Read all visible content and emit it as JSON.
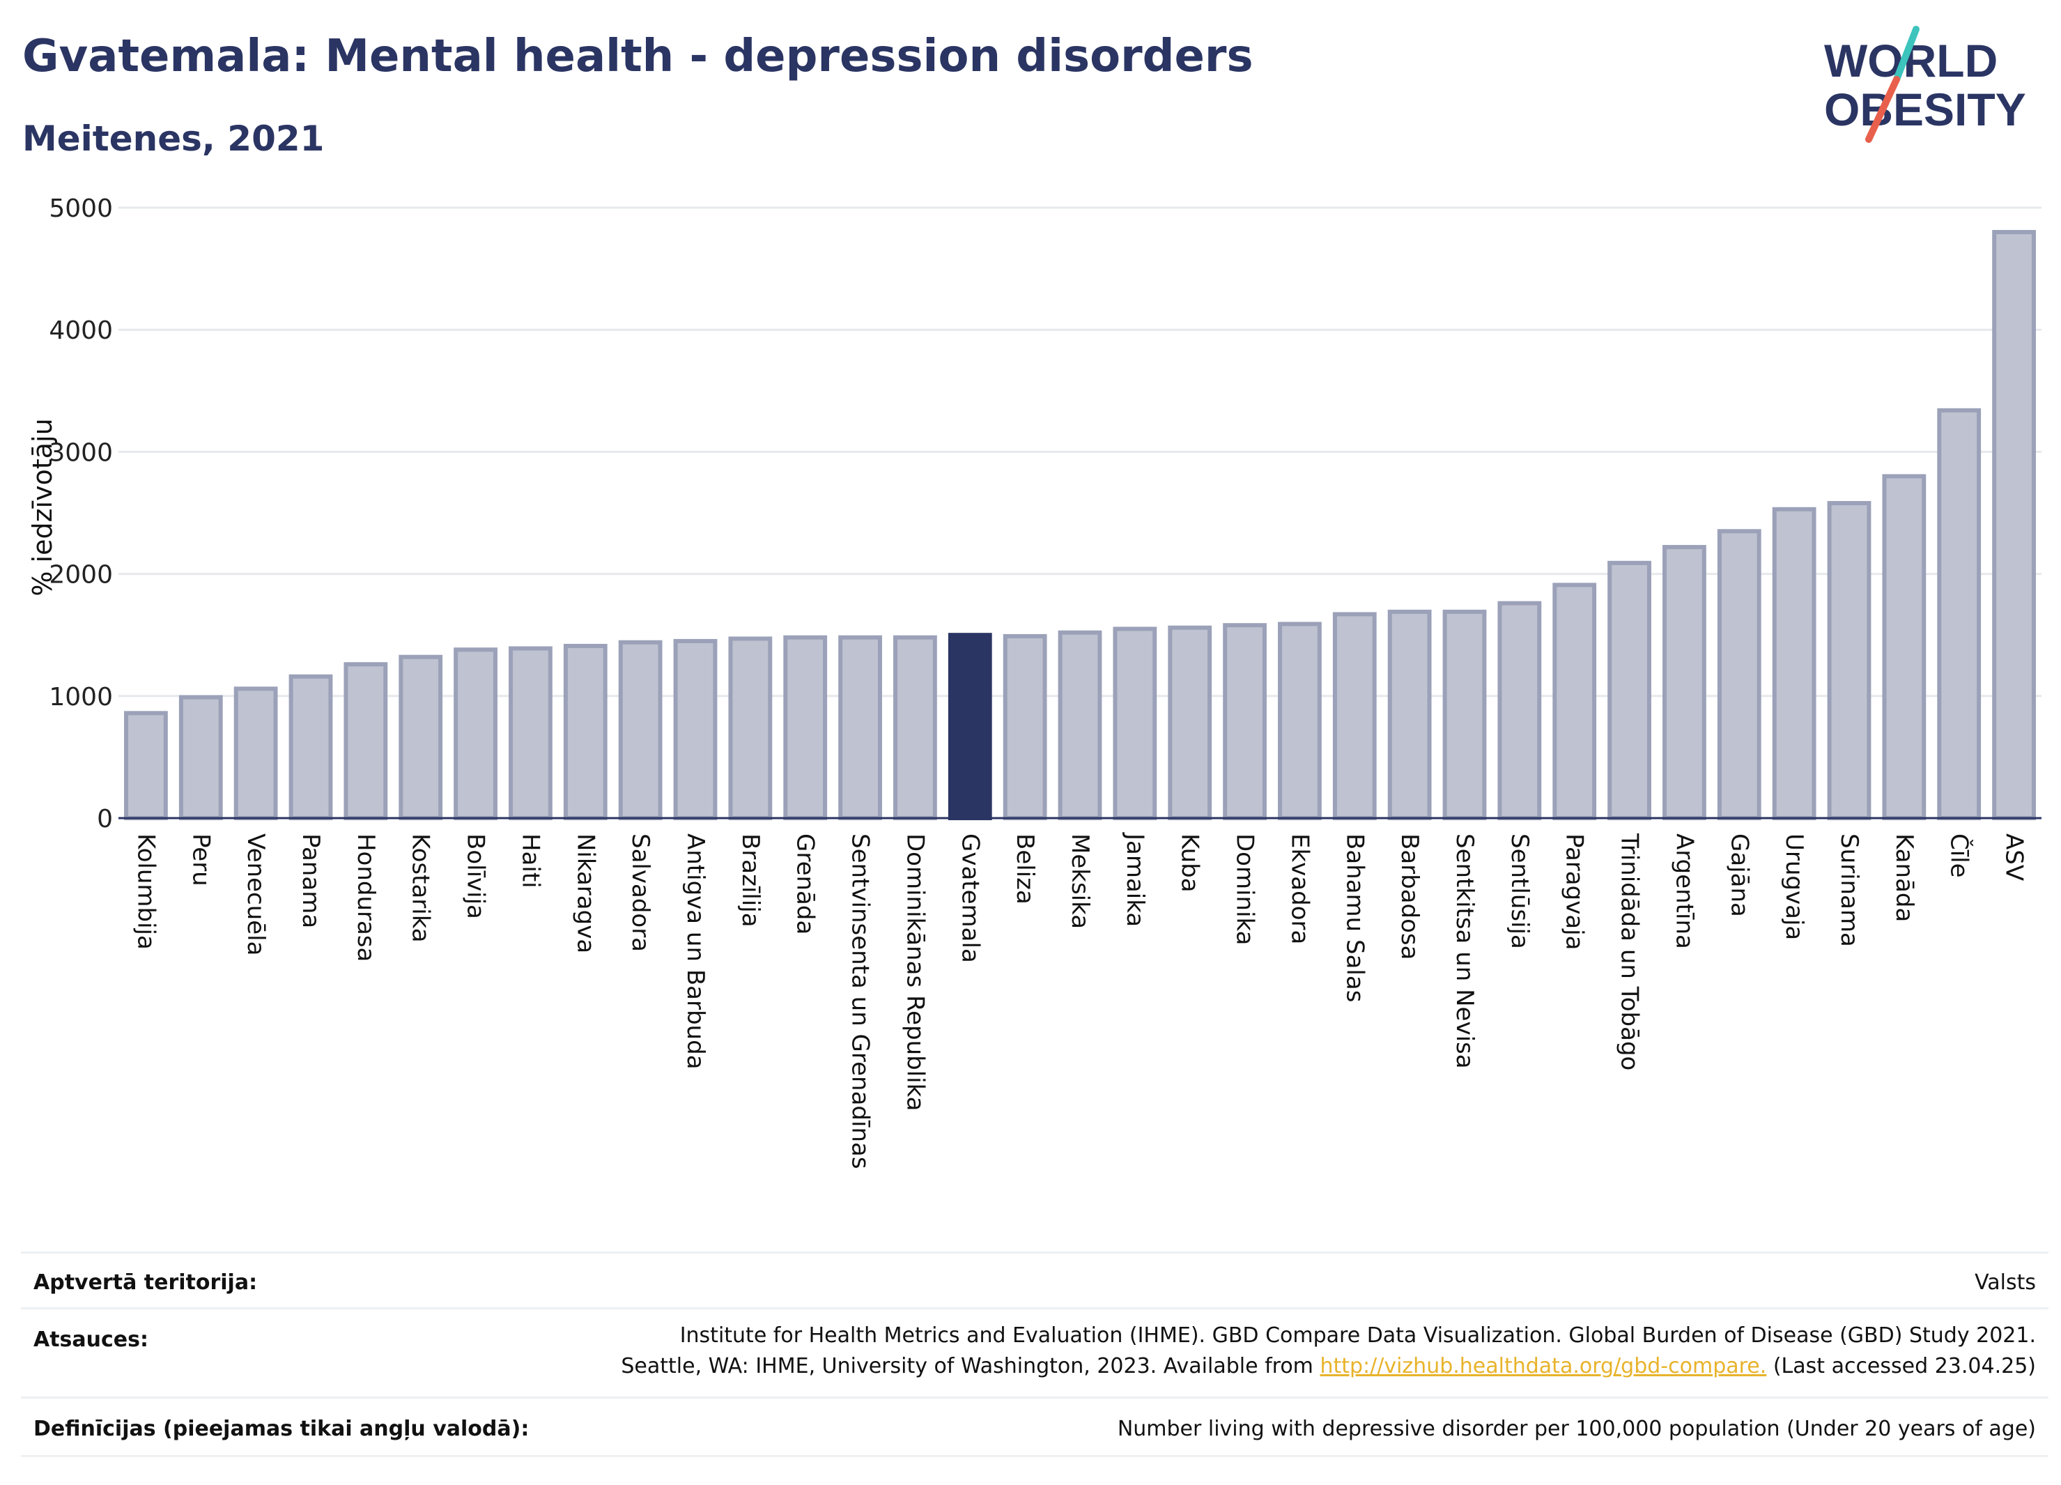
{
  "header": {
    "title": "Gvatemala: Mental health - depression disorders",
    "subtitle": "Meitenes, 2021"
  },
  "logo": {
    "line1": "WORLD",
    "line2": "OBESITY",
    "colors": {
      "text": "#2b3563",
      "slash_top": "#3cc4bd",
      "slash_bottom": "#e8604c"
    }
  },
  "colors": {
    "bar_fill": "#bfc2d0",
    "bar_stroke": "#9ba1b8",
    "highlight": "#2b3563",
    "grid": "#e6e8ec",
    "axis": "#2b3563"
  },
  "chart_data": {
    "type": "bar",
    "ylabel": "% iedzīvotāju",
    "ylim": [
      0,
      5000
    ],
    "yticks": [
      0,
      1000,
      2000,
      3000,
      4000,
      5000
    ],
    "grid": true,
    "highlight_category": "Gvatemala",
    "categories": [
      "Kolumbija",
      "Peru",
      "Venecuēla",
      "Panama",
      "Hondurasa",
      "Kostarika",
      "Bolīvija",
      "Haiti",
      "Nikaragva",
      "Salvadora",
      "Antigva un Barbuda",
      "Brazīlija",
      "Grenāda",
      "Sentvinsenta un Grenadīnas",
      "Dominikānas Republika",
      "Gvatemala",
      "Beliza",
      "Meksika",
      "Jamaika",
      "Kuba",
      "Dominika",
      "Ekvadora",
      "Bahamu Salas",
      "Barbadosa",
      "Sentkitsa un Nevisa",
      "Sentlūsija",
      "Paragvaja",
      "Trinidāda un Tobāgo",
      "Argentīna",
      "Gajāna",
      "Urugvaja",
      "Surinama",
      "Kanāda",
      "Čīle",
      "ASV"
    ],
    "values": [
      860,
      990,
      1060,
      1160,
      1260,
      1320,
      1380,
      1390,
      1410,
      1440,
      1450,
      1470,
      1480,
      1480,
      1480,
      1500,
      1490,
      1520,
      1550,
      1560,
      1580,
      1590,
      1670,
      1690,
      1690,
      1760,
      1910,
      2090,
      2220,
      2350,
      2530,
      2580,
      2800,
      3340,
      4800
    ]
  },
  "footer": {
    "territory_label": "Aptvertā teritorija:",
    "territory_value": "Valsts",
    "sources_label": "Atsauces:",
    "sources_line1": "Institute for Health Metrics and Evaluation (IHME). GBD Compare Data Visualization. Global Burden of Disease (GBD) Study 2021.",
    "sources_line2_pre": "Seattle, WA: IHME, University of Washington, 2023. Available from ",
    "sources_link": "http://vizhub.healthdata.org/gbd-compare.",
    "sources_line2_post": " (Last accessed 23.04.25)",
    "definitions_label": "Definīcijas (pieejamas tikai angļu valodā):",
    "definitions_value": "Number living with depressive disorder per 100,000 population (Under 20 years of age)"
  }
}
